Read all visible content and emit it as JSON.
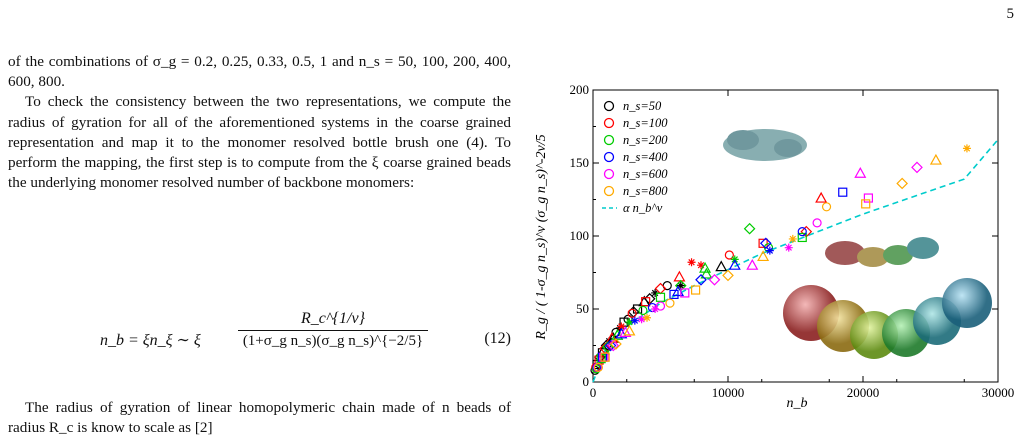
{
  "page_number": "5",
  "intro_text": "of the combinations of σ_g = 0.2, 0.25, 0.33, 0.5, 1 and n_s = 50, 100, 200, 400, 600, 800.",
  "para1": "To check the consistency between the two representations, we compute the radius of gyration for all of the aforementioned systems in the coarse grained representation and map it to the monomer resolved bottle brush one (4). To perform the mapping, the first step is to compute from the ξ coarse grained beads the underlying monomer resolved number of backbone monomers:",
  "equation": {
    "lhs": "n_b = ξn_ξ ∼ ξ",
    "numerator": "R_c^{1/ν}",
    "denominator": "(1+σ_g n_s)(σ_g n_s)^{−2/5}",
    "number": "(12)"
  },
  "para2": "The radius of gyration of linear homopolymeric chain made of n beads of radius R_c is know to scale as [2]",
  "chart_data": {
    "type": "scatter",
    "xlabel": "n_b",
    "ylabel": "R_g / ( 1-σ_g n_s)^ν (σ_g n_s)^-2ν/5",
    "xlim": [
      0,
      30000
    ],
    "ylim": [
      0,
      200
    ],
    "xticks": [
      "0",
      "10000",
      "20000",
      "30000"
    ],
    "yticks": [
      "0",
      "50",
      "100",
      "150",
      "200"
    ],
    "legend_position": "top-left",
    "colors": {
      "ns50": "#000000",
      "ns100": "#ff0000",
      "ns200": "#00cc00",
      "ns400": "#0000ff",
      "ns600": "#ff00ff",
      "ns800": "#ffaa00",
      "fit": "#00cccc"
    },
    "series": [
      {
        "name": "n_s=50",
        "color": "#000000",
        "points": [
          [
            150,
            8
          ],
          [
            300,
            12
          ],
          [
            500,
            17
          ],
          [
            800,
            22
          ],
          [
            1200,
            28
          ],
          [
            1700,
            34
          ],
          [
            2300,
            41
          ],
          [
            3000,
            48
          ],
          [
            3800,
            55
          ],
          [
            4600,
            61
          ],
          [
            5500,
            66
          ],
          [
            700,
            20
          ],
          [
            1000,
            25
          ],
          [
            1500,
            30
          ],
          [
            2000,
            37
          ],
          [
            2600,
            43
          ],
          [
            3300,
            50
          ],
          [
            4200,
            57
          ],
          [
            9500,
            79
          ],
          [
            6500,
            66
          ]
        ]
      },
      {
        "name": "n_s=100",
        "color": "#ff0000",
        "points": [
          [
            200,
            10
          ],
          [
            450,
            15
          ],
          [
            900,
            23
          ],
          [
            1400,
            30
          ],
          [
            2100,
            38
          ],
          [
            2900,
            47
          ],
          [
            3900,
            55
          ],
          [
            5000,
            64
          ],
          [
            6400,
            72
          ],
          [
            8000,
            80
          ],
          [
            10100,
            87
          ],
          [
            12600,
            95
          ],
          [
            15800,
            103
          ],
          [
            16900,
            126
          ],
          [
            7300,
            82
          ]
        ]
      },
      {
        "name": "n_s=200",
        "color": "#00cc00",
        "points": [
          [
            250,
            9
          ],
          [
            600,
            16
          ],
          [
            1100,
            24
          ],
          [
            1800,
            32
          ],
          [
            2700,
            41
          ],
          [
            3700,
            49
          ],
          [
            5000,
            58
          ],
          [
            6500,
            66
          ],
          [
            8400,
            74
          ],
          [
            10500,
            84
          ],
          [
            13000,
            92
          ],
          [
            15500,
            99
          ],
          [
            11600,
            105
          ],
          [
            8300,
            78
          ]
        ]
      },
      {
        "name": "n_s=400",
        "color": "#0000ff",
        "points": [
          [
            300,
            10
          ],
          [
            700,
            17
          ],
          [
            1300,
            25
          ],
          [
            2100,
            33
          ],
          [
            3100,
            42
          ],
          [
            4400,
            51
          ],
          [
            6000,
            60
          ],
          [
            8000,
            70
          ],
          [
            10500,
            80
          ],
          [
            13100,
            90
          ],
          [
            15500,
            103
          ],
          [
            18500,
            130
          ],
          [
            12800,
            95
          ],
          [
            6300,
            62
          ]
        ]
      },
      {
        "name": "n_s=600",
        "color": "#ff00ff",
        "points": [
          [
            350,
            10
          ],
          [
            800,
            17
          ],
          [
            1500,
            25
          ],
          [
            2400,
            34
          ],
          [
            3600,
            43
          ],
          [
            5000,
            52
          ],
          [
            6800,
            61
          ],
          [
            9000,
            70
          ],
          [
            11800,
            80
          ],
          [
            14500,
            92
          ],
          [
            16600,
            109
          ],
          [
            20400,
            126
          ],
          [
            24000,
            147
          ],
          [
            19800,
            143
          ],
          [
            4600,
            50
          ]
        ]
      },
      {
        "name": "n_s=800",
        "color": "#ffaa00",
        "points": [
          [
            400,
            10
          ],
          [
            900,
            17
          ],
          [
            1700,
            26
          ],
          [
            2700,
            35
          ],
          [
            4000,
            44
          ],
          [
            5700,
            54
          ],
          [
            7600,
            63
          ],
          [
            10000,
            73
          ],
          [
            12600,
            86
          ],
          [
            14800,
            98
          ],
          [
            17300,
            120
          ],
          [
            20200,
            122
          ],
          [
            22900,
            136
          ],
          [
            25400,
            152
          ],
          [
            27700,
            160
          ]
        ]
      }
    ],
    "fit": {
      "name": "α n_b^ν",
      "x": [
        0,
        1000,
        2500,
        5000,
        7500,
        10000,
        12500,
        15000,
        17500,
        20000,
        22500,
        25000,
        27500,
        30000
      ],
      "y": [
        0,
        24,
        38,
        54,
        66,
        77,
        88,
        97,
        106,
        115,
        123,
        131,
        139,
        166
      ]
    }
  }
}
